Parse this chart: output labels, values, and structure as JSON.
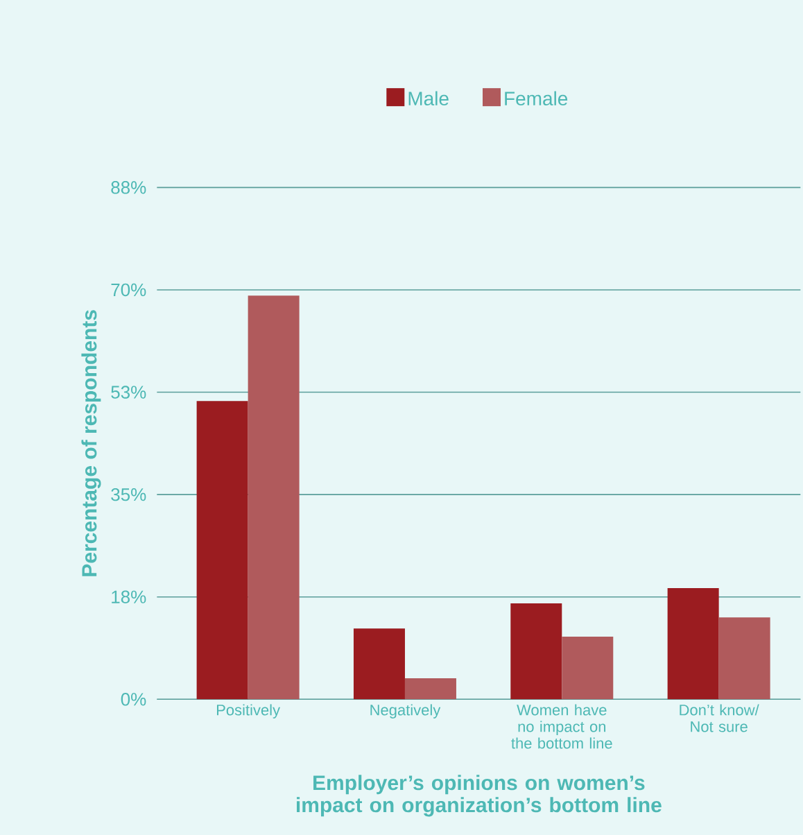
{
  "chart_data": {
    "type": "bar",
    "xlabel": "Employer’s opinions on women’s impact on organization’s bottom line",
    "ylabel": "Percentage of respondents",
    "categories": [
      "Positively",
      "Negatively",
      "Women have no impact on the bottom line",
      "Don’t know/ Not sure"
    ],
    "series": [
      {
        "name": "Male",
        "color": "#9b1c20",
        "values": [
          51,
          12.1,
          16.4,
          19
        ]
      },
      {
        "name": "Female",
        "color": "#b05a5c",
        "values": [
          69,
          3.6,
          10.7,
          14
        ]
      }
    ],
    "ylim": [
      0,
      87.5
    ],
    "yticks": [
      {
        "value": 0,
        "label": "0%"
      },
      {
        "value": 17.5,
        "label": "18%"
      },
      {
        "value": 35,
        "label": "35%"
      },
      {
        "value": 52.5,
        "label": "53%"
      },
      {
        "value": 70,
        "label": "70%"
      },
      {
        "value": 87.5,
        "label": "88%"
      }
    ],
    "grid": "y",
    "legend": "top"
  }
}
